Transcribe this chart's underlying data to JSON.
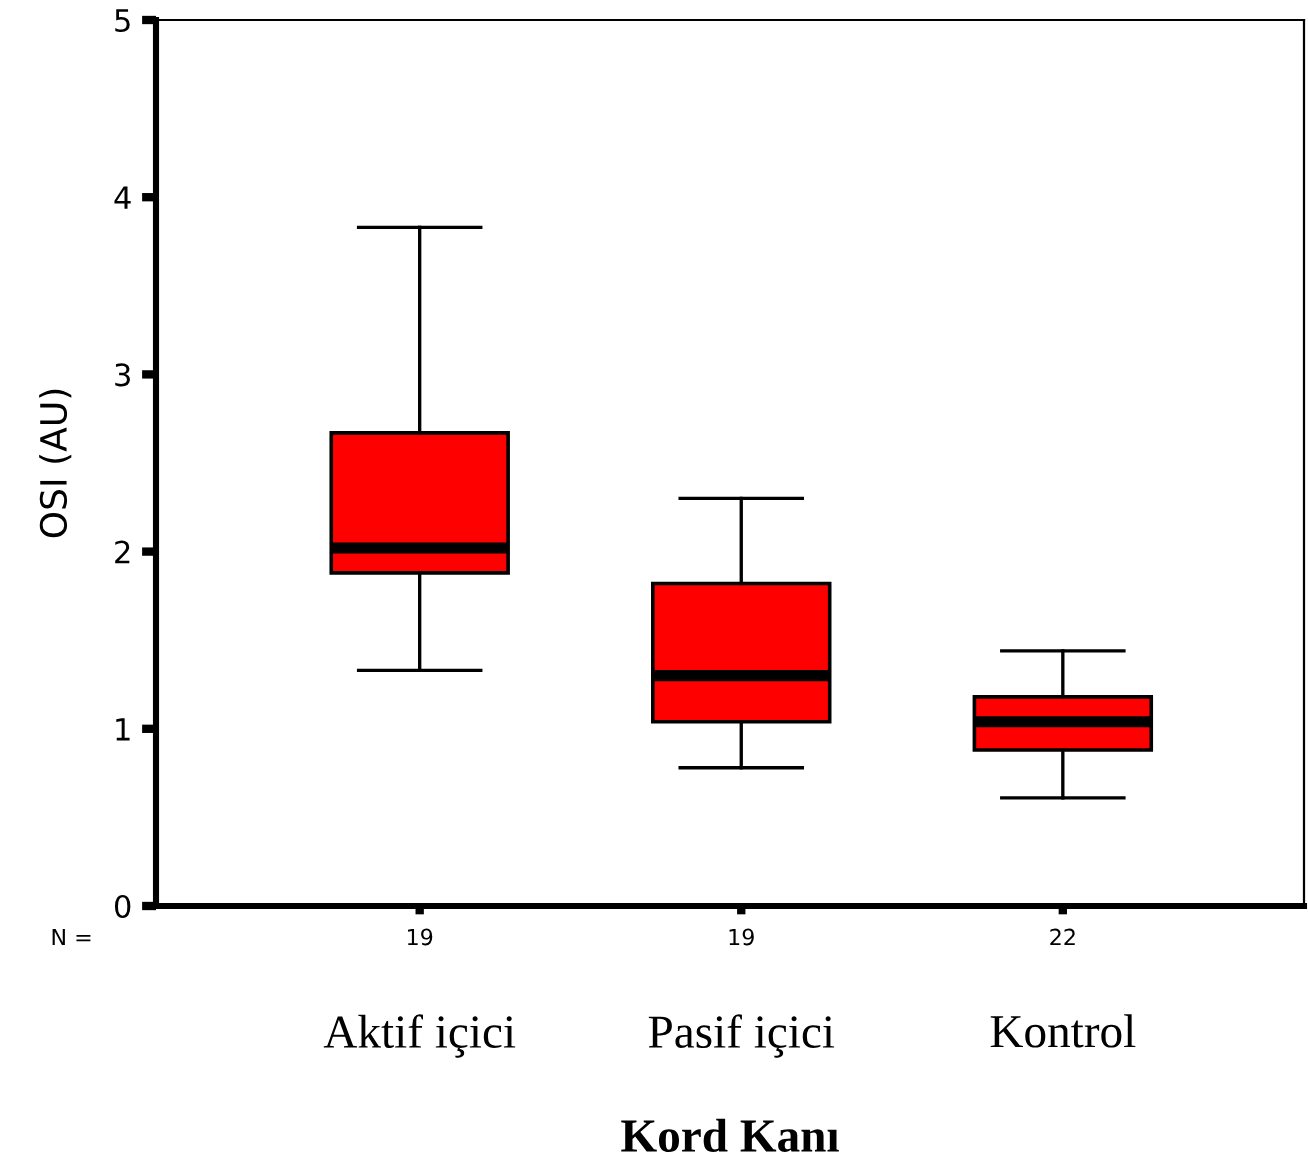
{
  "chart_data": {
    "type": "box",
    "xlabel": "Kord Kanı",
    "ylabel": "OSI (AU)",
    "categories": [
      "Aktif içici",
      "Pasif içici",
      "Kontrol"
    ],
    "series": [
      {
        "color": "#ff0000",
        "boxes": [
          {
            "low": 1.33,
            "q1": 1.88,
            "median": 2.02,
            "q3": 2.67,
            "high": 3.83
          },
          {
            "low": 0.78,
            "q1": 1.04,
            "median": 1.3,
            "q3": 1.82,
            "high": 2.3
          },
          {
            "low": 0.61,
            "q1": 0.88,
            "median": 1.04,
            "q3": 1.18,
            "high": 1.44
          }
        ]
      }
    ],
    "annotations": [
      "N =",
      "19",
      "19",
      "22"
    ],
    "ylim": [
      0,
      5
    ],
    "yticks": [
      0,
      1,
      2,
      3,
      4,
      5
    ],
    "grid": false,
    "legend": false
  }
}
